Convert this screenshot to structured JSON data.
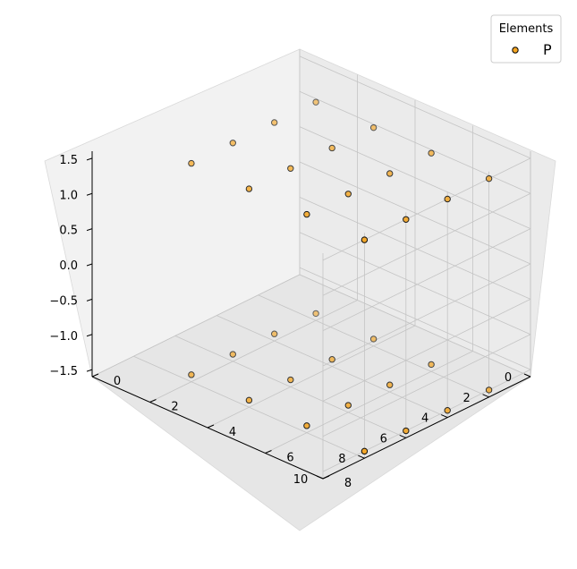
{
  "chart_data": {
    "type": "scatter",
    "projection": "3d",
    "grid": true,
    "legend": {
      "title": "Elements",
      "placement": "top-right",
      "entries": [
        "P"
      ]
    },
    "marker_color": "#f5a623",
    "marker_edge_color": "#000000",
    "axes": {
      "x": {
        "ticks": [
          "0",
          "2",
          "4",
          "6",
          "8",
          "10"
        ],
        "lim": [
          0,
          10
        ]
      },
      "y": {
        "ticks": [
          "0",
          "2",
          "4",
          "6",
          "8"
        ],
        "lim": [
          0,
          8
        ]
      },
      "z": {
        "ticks": [
          "−1.5",
          "−1.0",
          "−0.5",
          "0.0",
          "0.5",
          "1.0",
          "1.5"
        ],
        "lim": [
          -1.6,
          1.6
        ]
      }
    },
    "series": [
      {
        "name": "P",
        "points": [
          {
            "x": 2,
            "y": 2,
            "z": 1.5
          },
          {
            "x": 2,
            "y": 4,
            "z": 1.5
          },
          {
            "x": 2,
            "y": 6,
            "z": 1.5
          },
          {
            "x": 2,
            "y": 8,
            "z": 1.5
          },
          {
            "x": 4,
            "y": 2,
            "z": 1.5
          },
          {
            "x": 4,
            "y": 4,
            "z": 1.5
          },
          {
            "x": 4,
            "y": 6,
            "z": 1.5
          },
          {
            "x": 4,
            "y": 8,
            "z": 1.5
          },
          {
            "x": 6,
            "y": 2,
            "z": 1.5
          },
          {
            "x": 6,
            "y": 4,
            "z": 1.5
          },
          {
            "x": 6,
            "y": 6,
            "z": 1.5
          },
          {
            "x": 6,
            "y": 8,
            "z": 1.5
          },
          {
            "x": 8,
            "y": 2,
            "z": 1.5
          },
          {
            "x": 8,
            "y": 4,
            "z": 1.5
          },
          {
            "x": 8,
            "y": 6,
            "z": 1.5
          },
          {
            "x": 8,
            "y": 8,
            "z": 1.5
          },
          {
            "x": 2,
            "y": 2,
            "z": -1.5
          },
          {
            "x": 2,
            "y": 4,
            "z": -1.5
          },
          {
            "x": 2,
            "y": 6,
            "z": -1.5
          },
          {
            "x": 2,
            "y": 8,
            "z": -1.5
          },
          {
            "x": 4,
            "y": 2,
            "z": -1.5
          },
          {
            "x": 4,
            "y": 4,
            "z": -1.5
          },
          {
            "x": 4,
            "y": 6,
            "z": -1.5
          },
          {
            "x": 4,
            "y": 8,
            "z": -1.5
          },
          {
            "x": 6,
            "y": 2,
            "z": -1.5
          },
          {
            "x": 6,
            "y": 4,
            "z": -1.5
          },
          {
            "x": 6,
            "y": 6,
            "z": -1.5
          },
          {
            "x": 6,
            "y": 8,
            "z": -1.5
          },
          {
            "x": 8,
            "y": 2,
            "z": -1.5
          },
          {
            "x": 8,
            "y": 4,
            "z": -1.5
          },
          {
            "x": 8,
            "y": 6,
            "z": -1.5
          },
          {
            "x": 8,
            "y": 8,
            "z": -1.5
          }
        ]
      }
    ]
  }
}
